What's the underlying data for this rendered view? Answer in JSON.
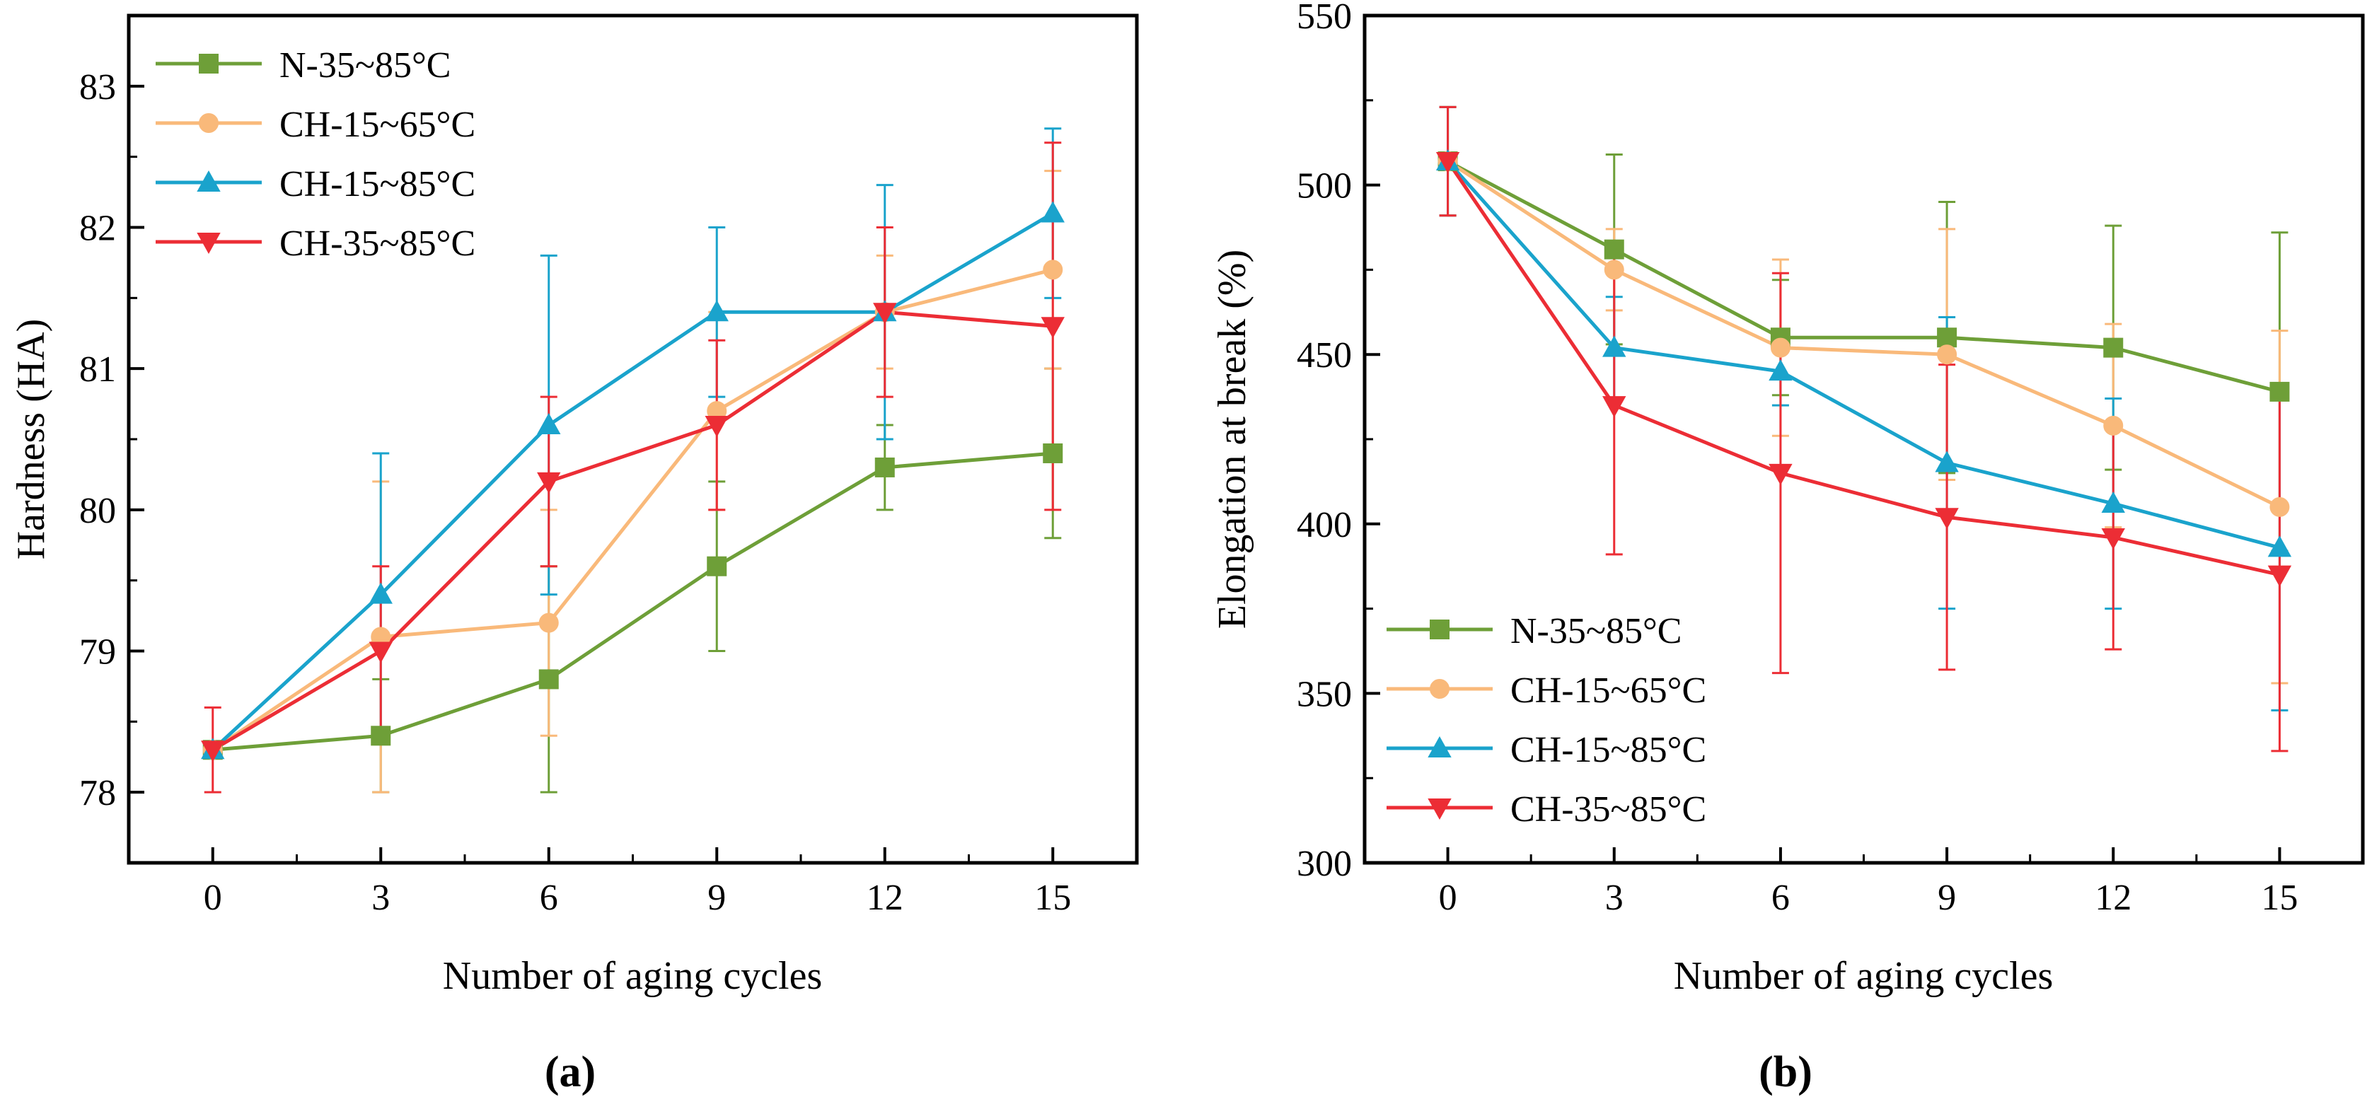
{
  "chart_data": [
    {
      "panel": "a",
      "type": "line",
      "caption": "(a)",
      "xlabel": "Number of aging cycles",
      "ylabel": "Hardness (HA)",
      "x": [
        0,
        3,
        6,
        9,
        12,
        15
      ],
      "xticks": [
        0,
        3,
        6,
        9,
        12,
        15
      ],
      "xlim": [
        -1.5,
        16.5
      ],
      "yticks": [
        78,
        79,
        80,
        81,
        82,
        83
      ],
      "ylim": [
        77.5,
        83.5
      ],
      "legend_position": "top-left",
      "series": [
        {
          "name": "N-35~85°C",
          "color": "#6e9f38",
          "marker": "square",
          "values": [
            78.3,
            78.4,
            78.8,
            79.6,
            80.3,
            80.4
          ],
          "error": [
            0.0,
            0.4,
            0.8,
            0.6,
            0.3,
            0.6
          ]
        },
        {
          "name": "CH-15~65°C",
          "color": "#f9b97a",
          "marker": "circle",
          "values": [
            78.3,
            79.1,
            79.2,
            80.7,
            81.4,
            81.7
          ],
          "error": [
            0.0,
            1.1,
            0.8,
            0.7,
            0.4,
            0.7
          ]
        },
        {
          "name": "CH-15~85°C",
          "color": "#1aa3cc",
          "marker": "triangle-up",
          "values": [
            78.3,
            79.4,
            80.6,
            81.4,
            81.4,
            82.1
          ],
          "error": [
            0.0,
            1.0,
            1.2,
            0.6,
            0.9,
            0.6
          ]
        },
        {
          "name": "CH-35~85°C",
          "color": "#ec2d35",
          "marker": "triangle-down",
          "values": [
            78.3,
            79.0,
            80.2,
            80.6,
            81.4,
            81.3
          ],
          "error": [
            0.3,
            0.6,
            0.6,
            0.6,
            0.6,
            1.3
          ]
        }
      ]
    },
    {
      "panel": "b",
      "type": "line",
      "caption": "(b)",
      "xlabel": "Number of aging cycles",
      "ylabel": "Elongation at break (%)",
      "x": [
        0,
        3,
        6,
        9,
        12,
        15
      ],
      "xticks": [
        0,
        3,
        6,
        9,
        12,
        15
      ],
      "xlim": [
        -1.5,
        16.5
      ],
      "yticks": [
        300,
        350,
        400,
        450,
        500,
        550
      ],
      "ylim": [
        300,
        550
      ],
      "legend_position": "bottom-left",
      "series": [
        {
          "name": "N-35~85°C",
          "color": "#6e9f38",
          "marker": "square",
          "values": [
            507,
            481,
            455,
            455,
            452,
            439
          ],
          "error": [
            16,
            28,
            17,
            40,
            36,
            47
          ]
        },
        {
          "name": "CH-15~65°C",
          "color": "#f9b97a",
          "marker": "circle",
          "values": [
            507,
            475,
            452,
            450,
            429,
            405
          ],
          "error": [
            16,
            12,
            26,
            37,
            30,
            52
          ]
        },
        {
          "name": "CH-15~85°C",
          "color": "#1aa3cc",
          "marker": "triangle-up",
          "values": [
            507,
            452,
            445,
            418,
            406,
            393
          ],
          "error": [
            16,
            15,
            10,
            43,
            31,
            48
          ]
        },
        {
          "name": "CH-35~85°C",
          "color": "#ec2d35",
          "marker": "triangle-down",
          "values": [
            507,
            435,
            415,
            402,
            396,
            385
          ],
          "error": [
            16,
            44,
            59,
            45,
            33,
            52
          ]
        }
      ]
    }
  ]
}
